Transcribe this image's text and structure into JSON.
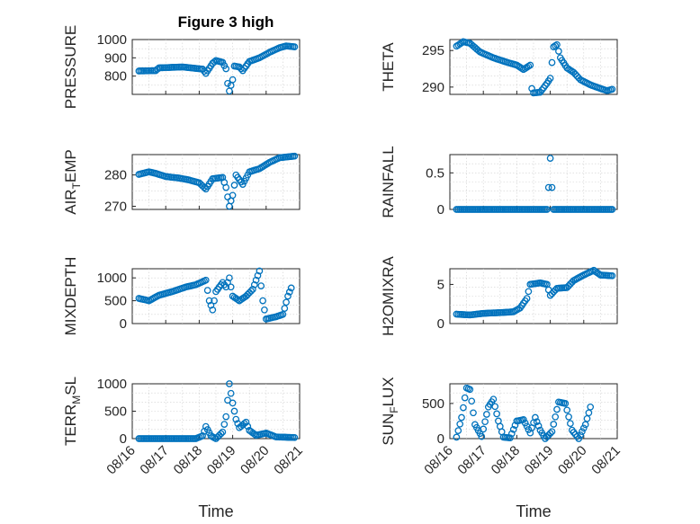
{
  "figure": {
    "title": "Figure 3 high"
  },
  "colors": {
    "marker": "#0072bd",
    "axis": "#262626",
    "grid": "#d0d0d0"
  },
  "chart_data": [
    {
      "type": "scatter",
      "title": "Figure 3 high",
      "ylabel": "PRESSURE",
      "ylabel_sub": "",
      "xlabel": "",
      "ylim": [
        700,
        1000
      ],
      "yticks": [
        "1000",
        "900",
        "800"
      ],
      "ytick_values": [
        1000,
        900,
        800
      ],
      "xlim": [
        0,
        5
      ],
      "xticks": [],
      "grid": true,
      "keypoints": [
        [
          0.2,
          828
        ],
        [
          0.7,
          830
        ],
        [
          0.8,
          845
        ],
        [
          1.5,
          850
        ],
        [
          2.1,
          838
        ],
        [
          2.2,
          815
        ],
        [
          2.4,
          870
        ],
        [
          2.5,
          885
        ],
        [
          2.7,
          875
        ],
        [
          2.8,
          840
        ],
        [
          2.85,
          760
        ],
        [
          2.9,
          718
        ],
        [
          3.0,
          780
        ],
        [
          3.05,
          855
        ],
        [
          3.2,
          850
        ],
        [
          3.3,
          830
        ],
        [
          3.5,
          880
        ],
        [
          3.8,
          900
        ],
        [
          4.1,
          930
        ],
        [
          4.4,
          955
        ],
        [
          4.6,
          965
        ],
        [
          4.85,
          960
        ]
      ]
    },
    {
      "type": "scatter",
      "title": "",
      "ylabel": "THETA",
      "ylabel_sub": "",
      "xlabel": "",
      "ylim": [
        289,
        296.5
      ],
      "yticks": [
        "295",
        "290"
      ],
      "ytick_values": [
        295,
        290
      ],
      "xlim": [
        0,
        5
      ],
      "xticks": [],
      "grid": true,
      "keypoints": [
        [
          0.2,
          295.6
        ],
        [
          0.4,
          296.2
        ],
        [
          0.6,
          296.0
        ],
        [
          0.9,
          294.8
        ],
        [
          1.3,
          294.0
        ],
        [
          1.7,
          293.4
        ],
        [
          2.0,
          293.0
        ],
        [
          2.2,
          292.4
        ],
        [
          2.4,
          293.0
        ],
        [
          2.45,
          289.8
        ],
        [
          2.5,
          289.2
        ],
        [
          2.7,
          289.3
        ],
        [
          2.9,
          290.5
        ],
        [
          3.0,
          291.2
        ],
        [
          3.1,
          295.5
        ],
        [
          3.2,
          295.8
        ],
        [
          3.3,
          294.0
        ],
        [
          3.5,
          292.6
        ],
        [
          3.7,
          292.0
        ],
        [
          3.9,
          291.0
        ],
        [
          4.2,
          290.3
        ],
        [
          4.5,
          289.8
        ],
        [
          4.7,
          289.5
        ],
        [
          4.85,
          289.7
        ]
      ]
    },
    {
      "type": "scatter",
      "title": "",
      "ylabel": "AIR",
      "ylabel_sub": "T",
      "ylabel_suffix": "EMP",
      "xlabel": "",
      "ylim": [
        269,
        286.5
      ],
      "yticks": [
        "280",
        "270"
      ],
      "ytick_values": [
        280,
        270
      ],
      "xlim": [
        0,
        5
      ],
      "xticks": [],
      "grid": true,
      "keypoints": [
        [
          0.2,
          280.2
        ],
        [
          0.5,
          281.0
        ],
        [
          0.7,
          280.5
        ],
        [
          1.0,
          279.5
        ],
        [
          1.4,
          279.0
        ],
        [
          1.7,
          278.4
        ],
        [
          2.0,
          277.5
        ],
        [
          2.2,
          275.5
        ],
        [
          2.4,
          278.8
        ],
        [
          2.7,
          279.2
        ],
        [
          2.8,
          276.0
        ],
        [
          2.9,
          270.0
        ],
        [
          3.0,
          273.5
        ],
        [
          3.1,
          280.0
        ],
        [
          3.3,
          277.0
        ],
        [
          3.5,
          281.0
        ],
        [
          3.8,
          282.0
        ],
        [
          4.1,
          284.0
        ],
        [
          4.4,
          285.5
        ],
        [
          4.85,
          286.0
        ]
      ]
    },
    {
      "type": "scatter",
      "title": "",
      "ylabel": "RAINFALL",
      "ylabel_sub": "",
      "xlabel": "",
      "ylim": [
        0,
        0.75
      ],
      "yticks": [
        "0.5",
        "0"
      ],
      "ytick_values": [
        0.5,
        0
      ],
      "xlim": [
        0,
        5
      ],
      "xticks": [],
      "grid": true,
      "keypoints": [
        [
          0.2,
          0
        ],
        [
          2.9,
          0
        ],
        [
          2.95,
          0.3
        ],
        [
          3.0,
          0.7
        ],
        [
          3.05,
          0.3
        ],
        [
          3.1,
          0
        ],
        [
          4.85,
          0
        ]
      ]
    },
    {
      "type": "scatter",
      "title": "",
      "ylabel": "MIXDEPTH",
      "ylabel_sub": "",
      "xlabel": "",
      "ylim": [
        0,
        1200
      ],
      "yticks": [
        "1000",
        "500",
        "0"
      ],
      "ytick_values": [
        1000,
        500,
        0
      ],
      "xlim": [
        0,
        5
      ],
      "xticks": [],
      "grid": true,
      "keypoints": [
        [
          0.2,
          550
        ],
        [
          0.5,
          500
        ],
        [
          0.8,
          620
        ],
        [
          1.2,
          700
        ],
        [
          1.6,
          800
        ],
        [
          1.9,
          850
        ],
        [
          2.2,
          950
        ],
        [
          2.3,
          500
        ],
        [
          2.4,
          300
        ],
        [
          2.5,
          700
        ],
        [
          2.7,
          900
        ],
        [
          2.8,
          800
        ],
        [
          2.9,
          1000
        ],
        [
          3.0,
          600
        ],
        [
          3.2,
          500
        ],
        [
          3.4,
          600
        ],
        [
          3.6,
          750
        ],
        [
          3.8,
          1150
        ],
        [
          3.9,
          500
        ],
        [
          4.0,
          100
        ],
        [
          4.3,
          150
        ],
        [
          4.5,
          200
        ],
        [
          4.65,
          600
        ],
        [
          4.75,
          780
        ]
      ]
    },
    {
      "type": "scatter",
      "title": "",
      "ylabel": "H2OMIXRA",
      "ylabel_sub": "",
      "xlabel": "",
      "ylim": [
        0,
        7
      ],
      "yticks": [
        "5",
        "0"
      ],
      "ytick_values": [
        5,
        0
      ],
      "xlim": [
        0,
        5
      ],
      "xticks": [],
      "grid": true,
      "keypoints": [
        [
          0.2,
          1.2
        ],
        [
          0.6,
          1.1
        ],
        [
          1.0,
          1.3
        ],
        [
          1.5,
          1.4
        ],
        [
          1.9,
          1.5
        ],
        [
          2.1,
          2.0
        ],
        [
          2.3,
          3.2
        ],
        [
          2.4,
          5.0
        ],
        [
          2.7,
          5.2
        ],
        [
          2.9,
          5.0
        ],
        [
          3.0,
          3.6
        ],
        [
          3.2,
          4.5
        ],
        [
          3.5,
          4.6
        ],
        [
          3.7,
          5.5
        ],
        [
          4.0,
          6.2
        ],
        [
          4.3,
          6.8
        ],
        [
          4.5,
          6.2
        ],
        [
          4.85,
          6.1
        ]
      ]
    },
    {
      "type": "scatter",
      "title": "",
      "ylabel": "TERR",
      "ylabel_sub": "M",
      "ylabel_suffix": "SL",
      "xlabel": "Time",
      "ylim": [
        0,
        1000
      ],
      "yticks": [
        "1000",
        "500",
        "0"
      ],
      "ytick_values": [
        1000,
        500,
        0
      ],
      "xlim": [
        0,
        5
      ],
      "xticks": [
        "08/16",
        "08/17",
        "08/18",
        "08/19",
        "08/20",
        "08/21"
      ],
      "grid": true,
      "keypoints": [
        [
          0.2,
          0
        ],
        [
          1.9,
          0
        ],
        [
          2.1,
          50
        ],
        [
          2.2,
          220
        ],
        [
          2.35,
          50
        ],
        [
          2.5,
          0
        ],
        [
          2.7,
          120
        ],
        [
          2.8,
          400
        ],
        [
          2.9,
          1000
        ],
        [
          3.0,
          650
        ],
        [
          3.1,
          350
        ],
        [
          3.2,
          200
        ],
        [
          3.4,
          300
        ],
        [
          3.5,
          150
        ],
        [
          3.7,
          60
        ],
        [
          4.0,
          100
        ],
        [
          4.3,
          30
        ],
        [
          4.85,
          20
        ]
      ]
    },
    {
      "type": "scatter",
      "title": "",
      "ylabel": "SUN",
      "ylabel_sub": "F",
      "ylabel_suffix": "LUX",
      "xlabel": "Time",
      "ylim": [
        0,
        780
      ],
      "yticks": [
        "500",
        "0"
      ],
      "ytick_values": [
        500,
        0
      ],
      "xlim": [
        0,
        5
      ],
      "xticks": [
        "08/16",
        "08/17",
        "08/18",
        "08/19",
        "08/20",
        "08/21"
      ],
      "grid": true,
      "keypoints": [
        [
          0.2,
          20
        ],
        [
          0.35,
          300
        ],
        [
          0.5,
          720
        ],
        [
          0.6,
          700
        ],
        [
          0.75,
          200
        ],
        [
          0.95,
          30
        ],
        [
          1.15,
          450
        ],
        [
          1.3,
          560
        ],
        [
          1.45,
          250
        ],
        [
          1.6,
          20
        ],
        [
          1.8,
          10
        ],
        [
          2.0,
          250
        ],
        [
          2.2,
          270
        ],
        [
          2.4,
          80
        ],
        [
          2.55,
          300
        ],
        [
          2.7,
          120
        ],
        [
          2.85,
          0
        ],
        [
          3.05,
          100
        ],
        [
          3.25,
          520
        ],
        [
          3.45,
          500
        ],
        [
          3.65,
          120
        ],
        [
          3.85,
          0
        ],
        [
          4.05,
          200
        ],
        [
          4.2,
          450
        ]
      ]
    }
  ]
}
